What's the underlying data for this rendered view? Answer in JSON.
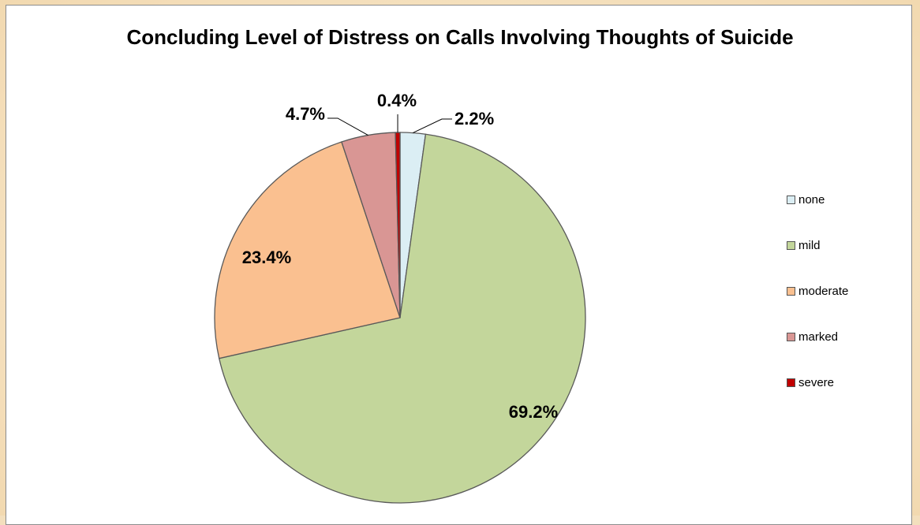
{
  "chart_data": {
    "type": "pie",
    "title": "Concluding Level of Distress on Calls Involving Thoughts of Suicide",
    "categories": [
      "none",
      "mild",
      "moderate",
      "marked",
      "severe"
    ],
    "values": [
      2.2,
      69.2,
      23.4,
      4.7,
      0.4
    ],
    "labels": [
      "2.2%",
      "69.2%",
      "23.4%",
      "4.7%",
      "0.4%"
    ],
    "colors": [
      "#dbeef4",
      "#c3d69b",
      "#fac090",
      "#d99694",
      "#c00000"
    ],
    "legend_placement": "right"
  }
}
